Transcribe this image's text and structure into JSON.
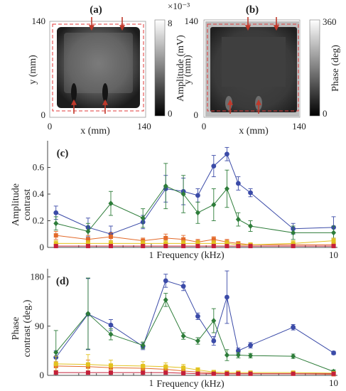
{
  "chart_data": [
    {
      "type": "heatmap",
      "panel_label": "(a)",
      "xlabel": "x (mm)",
      "ylabel": "y (mm)",
      "x_ticks": [
        "0",
        "140"
      ],
      "y_ticks": [
        "0",
        "140"
      ],
      "xlim": [
        0,
        140
      ],
      "ylim": [
        0,
        140
      ],
      "colorbar": {
        "label": "Amplitude (mV)",
        "exponent": "×10⁻³",
        "ticks": [
          "0",
          "8"
        ],
        "range": [
          0,
          8
        ]
      },
      "colormap": "gray"
    },
    {
      "type": "heatmap",
      "panel_label": "(b)",
      "xlabel": "x (mm)",
      "ylabel": "y (mm)",
      "x_ticks": [
        "0",
        "140"
      ],
      "y_ticks": [
        "0",
        "140"
      ],
      "xlim": [
        0,
        140
      ],
      "ylim": [
        0,
        140
      ],
      "colorbar": {
        "label": "Phase (deg)",
        "ticks": [
          "0",
          "360"
        ],
        "range": [
          0,
          360
        ]
      },
      "colormap": "gray"
    },
    {
      "type": "line",
      "panel_label": "(c)",
      "xscale": "log",
      "xlabel": "Frequency (kHz)",
      "ylabel": "Amplitude contrast",
      "xlim": [
        0.27,
        10.5
      ],
      "ylim": [
        0,
        0.8
      ],
      "x_ticks": [
        "1",
        "10"
      ],
      "x_tick_values": [
        1,
        10
      ],
      "y_ticks": [
        "0",
        "0.2",
        "0.4",
        "0.6"
      ],
      "y_tick_values": [
        0,
        0.2,
        0.4,
        0.6
      ],
      "grid": false,
      "series": [
        {
          "color": "#3b4ba8",
          "marker": "circle",
          "x": [
            0.3,
            0.45,
            0.6,
            0.9,
            1.2,
            1.5,
            1.8,
            2.2,
            2.6,
            3.0,
            3.5,
            6.0,
            10.0
          ],
          "y": [
            0.26,
            0.15,
            0.1,
            0.19,
            0.44,
            0.42,
            0.39,
            0.61,
            0.7,
            0.48,
            0.41,
            0.14,
            0.15
          ],
          "err": [
            0.05,
            0.07,
            0.06,
            0.05,
            0.1,
            0.1,
            0.05,
            0.08,
            0.05,
            0.05,
            0.03,
            0.04,
            0.08
          ]
        },
        {
          "color": "#2e7d3a",
          "marker": "diamond",
          "x": [
            0.3,
            0.45,
            0.6,
            0.9,
            1.2,
            1.5,
            1.8,
            2.2,
            2.6,
            3.0,
            3.5,
            6.0,
            10.0
          ],
          "y": [
            0.18,
            0.12,
            0.33,
            0.22,
            0.46,
            0.4,
            0.26,
            0.32,
            0.44,
            0.21,
            0.16,
            0.11,
            0.11
          ],
          "err": [
            0.05,
            0.06,
            0.09,
            0.07,
            0.17,
            0.14,
            0.08,
            0.12,
            0.14,
            0.05,
            0.04,
            0.05,
            0.05
          ]
        },
        {
          "color": "#e36a2a",
          "marker": "square",
          "x": [
            0.3,
            0.45,
            0.6,
            0.9,
            1.2,
            1.5,
            1.8,
            2.2,
            2.6,
            3.0,
            3.5,
            6.0,
            10.0
          ],
          "y": [
            0.09,
            0.06,
            0.08,
            0.05,
            0.07,
            0.06,
            0.04,
            0.06,
            0.04,
            0.03,
            0.02,
            0.02,
            0.02
          ],
          "err": [
            0.03,
            0.03,
            0.03,
            0.02,
            0.03,
            0.03,
            0.02,
            0.02,
            0.02,
            0.01,
            0.01,
            0.01,
            0.01
          ]
        },
        {
          "color": "#e2c21f",
          "marker": "square",
          "x": [
            0.3,
            0.45,
            0.6,
            0.9,
            1.2,
            1.5,
            1.8,
            2.2,
            2.6,
            3.0,
            3.5,
            6.0,
            10.0
          ],
          "y": [
            0.03,
            0.03,
            0.03,
            0.03,
            0.03,
            0.03,
            0.03,
            0.03,
            0.03,
            0.02,
            0.02,
            0.03,
            0.05
          ],
          "err": [
            0.02,
            0.02,
            0.02,
            0.02,
            0.02,
            0.02,
            0.02,
            0.02,
            0.02,
            0.01,
            0.01,
            0.02,
            0.02
          ]
        },
        {
          "color": "#c4203a",
          "marker": "square",
          "x": [
            0.3,
            0.45,
            0.6,
            0.9,
            1.2,
            1.5,
            1.8,
            2.2,
            2.6,
            3.0,
            3.5,
            6.0,
            10.0
          ],
          "y": [
            0.01,
            0.01,
            0.01,
            0.01,
            0.01,
            0.01,
            0.01,
            0.01,
            0.01,
            0.01,
            0.01,
            0.01,
            0.01
          ],
          "err": [
            0.01,
            0.01,
            0.01,
            0.01,
            0.01,
            0.01,
            0.01,
            0.01,
            0.01,
            0.01,
            0.01,
            0.01,
            0.01
          ]
        }
      ]
    },
    {
      "type": "line",
      "panel_label": "(d)",
      "xscale": "log",
      "xlabel": "Frequency (kHz)",
      "ylabel": "Phase contrast (deg.)",
      "xlim": [
        0.27,
        10.5
      ],
      "ylim": [
        0,
        195
      ],
      "x_ticks": [
        "1",
        "10"
      ],
      "x_tick_values": [
        1,
        10
      ],
      "y_ticks": [
        "0",
        "90",
        "180"
      ],
      "y_tick_values": [
        0,
        90,
        180
      ],
      "grid": false,
      "series": [
        {
          "color": "#3b4ba8",
          "marker": "circle",
          "x": [
            0.3,
            0.45,
            0.6,
            0.9,
            1.2,
            1.5,
            1.8,
            2.2,
            2.6,
            3.0,
            3.5,
            6.0,
            10.0
          ],
          "y": [
            33,
            112,
            92,
            53,
            173,
            163,
            108,
            63,
            143,
            45,
            55,
            88,
            41
          ],
          "err": [
            12,
            65,
            10,
            6,
            12,
            8,
            6,
            8,
            48,
            5,
            5,
            5,
            3
          ]
        },
        {
          "color": "#2e7d3a",
          "marker": "diamond",
          "x": [
            0.3,
            0.45,
            0.6,
            0.9,
            1.2,
            1.5,
            1.8,
            2.2,
            2.6,
            3.0,
            3.5,
            6.0,
            10.0
          ],
          "y": [
            42,
            113,
            75,
            55,
            138,
            72,
            63,
            100,
            37,
            37,
            36,
            35,
            7
          ],
          "err": [
            40,
            65,
            10,
            6,
            12,
            6,
            6,
            22,
            10,
            5,
            4,
            4,
            3
          ]
        },
        {
          "color": "#e36a2a",
          "marker": "square",
          "x": [
            0.3,
            0.45,
            0.6,
            0.9,
            1.2,
            1.5,
            1.8,
            2.2,
            2.6,
            3.0,
            3.5,
            6.0,
            10.0
          ],
          "y": [
            17,
            16,
            14,
            13,
            11,
            8,
            6,
            4,
            3,
            3,
            3,
            3,
            2
          ],
          "err": [
            8,
            12,
            7,
            6,
            6,
            5,
            4,
            3,
            3,
            2,
            2,
            2,
            2
          ]
        },
        {
          "color": "#e2c21f",
          "marker": "square",
          "x": [
            0.3,
            0.45,
            0.6,
            0.9,
            1.2,
            1.5,
            1.8,
            2.2,
            2.6,
            3.0,
            3.5,
            6.0,
            10.0
          ],
          "y": [
            21,
            20,
            18,
            17,
            16,
            14,
            10,
            6,
            5,
            5,
            5,
            5,
            4
          ],
          "err": [
            14,
            18,
            10,
            8,
            7,
            6,
            4,
            3,
            3,
            2,
            2,
            2,
            2
          ]
        },
        {
          "color": "#c4203a",
          "marker": "square",
          "x": [
            0.3,
            0.45,
            0.6,
            0.9,
            1.2,
            1.5,
            1.8,
            2.2,
            2.6,
            3.0,
            3.5,
            6.0,
            10.0
          ],
          "y": [
            5,
            5,
            5,
            5,
            5,
            4,
            3,
            3,
            3,
            3,
            3,
            3,
            3
          ],
          "err": [
            3,
            3,
            3,
            3,
            3,
            2,
            2,
            2,
            2,
            2,
            2,
            2,
            2
          ]
        }
      ]
    }
  ]
}
